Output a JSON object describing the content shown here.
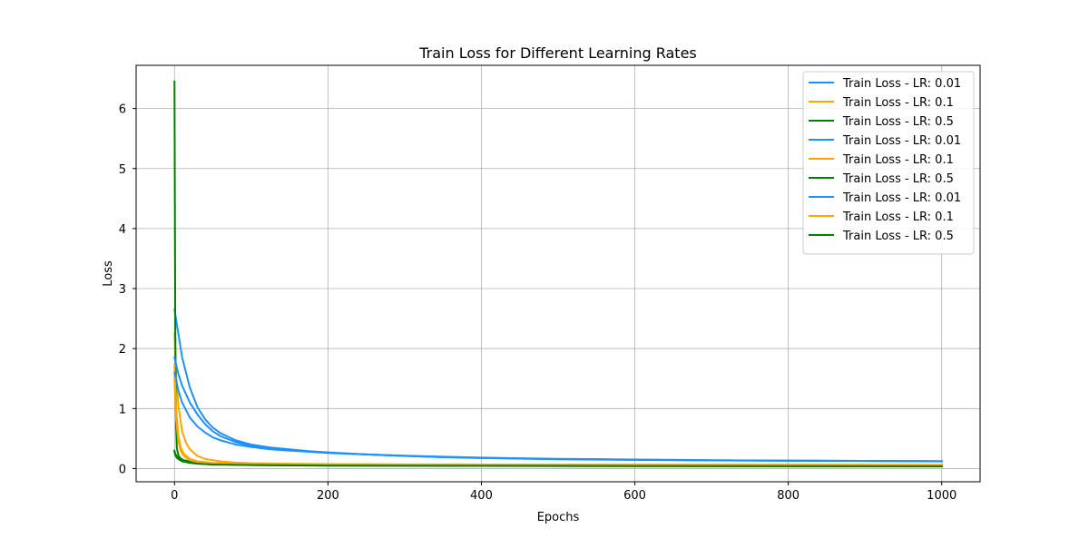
{
  "chart_data": {
    "type": "line",
    "title": "Train Loss for Different Learning Rates",
    "xlabel": "Epochs",
    "ylabel": "Loss",
    "xlim": [
      -50,
      1050
    ],
    "ylim": [
      -0.22,
      6.72
    ],
    "xticks": [
      0,
      200,
      400,
      600,
      800,
      1000
    ],
    "yticks": [
      0,
      1,
      2,
      3,
      4,
      5,
      6
    ],
    "grid": true,
    "legend_position": "top-right",
    "colors": {
      "lr_0_01": "#1e90ff",
      "lr_0_1": "#ffa500",
      "lr_0_5": "#008000"
    },
    "series": [
      {
        "name": "Train Loss - LR: 0.01",
        "color": "#1e90ff",
        "x": [
          0,
          10,
          20,
          30,
          40,
          50,
          60,
          80,
          100,
          125,
          150,
          175,
          200,
          250,
          300,
          350,
          400,
          450,
          500,
          600,
          700,
          800,
          900,
          1000
        ],
        "y": [
          2.65,
          1.85,
          1.35,
          1.02,
          0.82,
          0.68,
          0.59,
          0.47,
          0.4,
          0.35,
          0.32,
          0.29,
          0.27,
          0.235,
          0.21,
          0.19,
          0.175,
          0.165,
          0.155,
          0.145,
          0.135,
          0.13,
          0.125,
          0.12
        ]
      },
      {
        "name": "Train Loss - LR: 0.1",
        "color": "#ffa500",
        "x": [
          0,
          2,
          5,
          10,
          15,
          20,
          30,
          40,
          60,
          80,
          100,
          150,
          200,
          300,
          400,
          600,
          800,
          1000
        ],
        "y": [
          2.25,
          1.6,
          1.05,
          0.62,
          0.43,
          0.32,
          0.21,
          0.16,
          0.12,
          0.1,
          0.09,
          0.08,
          0.075,
          0.07,
          0.068,
          0.065,
          0.063,
          0.062
        ]
      },
      {
        "name": "Train Loss - LR: 0.5",
        "color": "#008000",
        "x": [
          0,
          1,
          2,
          3,
          5,
          8,
          12,
          20,
          30,
          50,
          100,
          200,
          400,
          600,
          800,
          1000
        ],
        "y": [
          6.45,
          2.4,
          0.75,
          0.35,
          0.22,
          0.17,
          0.14,
          0.12,
          0.1,
          0.085,
          0.07,
          0.062,
          0.058,
          0.055,
          0.053,
          0.052
        ]
      },
      {
        "name": "Train Loss - LR: 0.01",
        "color": "#1e90ff",
        "x": [
          0,
          5,
          10,
          20,
          30,
          40,
          50,
          60,
          80,
          100,
          125,
          150,
          175,
          200,
          250,
          300,
          350,
          400,
          450,
          500,
          600,
          700,
          800,
          900,
          1000
        ],
        "y": [
          1.85,
          1.58,
          1.38,
          1.1,
          0.9,
          0.74,
          0.62,
          0.54,
          0.44,
          0.38,
          0.34,
          0.31,
          0.285,
          0.265,
          0.235,
          0.21,
          0.19,
          0.178,
          0.167,
          0.158,
          0.147,
          0.138,
          0.132,
          0.127,
          0.122
        ]
      },
      {
        "name": "Train Loss - LR: 0.1",
        "color": "#ffa500",
        "x": [
          0,
          2,
          5,
          8,
          12,
          20,
          30,
          50,
          80,
          100,
          150,
          200,
          300,
          400,
          600,
          800,
          1000
        ],
        "y": [
          1.72,
          1.0,
          0.55,
          0.36,
          0.25,
          0.16,
          0.12,
          0.095,
          0.085,
          0.08,
          0.075,
          0.072,
          0.068,
          0.066,
          0.064,
          0.062,
          0.061
        ]
      },
      {
        "name": "Train Loss - LR: 0.5",
        "color": "#008000",
        "x": [
          0,
          1,
          3,
          6,
          10,
          20,
          30,
          50,
          100,
          200,
          400,
          600,
          800,
          1000
        ],
        "y": [
          0.3,
          0.25,
          0.2,
          0.16,
          0.13,
          0.1,
          0.085,
          0.07,
          0.06,
          0.05,
          0.045,
          0.042,
          0.04,
          0.038
        ]
      },
      {
        "name": "Train Loss - LR: 0.01",
        "color": "#1e90ff",
        "x": [
          0,
          5,
          10,
          20,
          30,
          40,
          50,
          60,
          80,
          100,
          125,
          150,
          175,
          200,
          250,
          300,
          350,
          400,
          450,
          500,
          600,
          700,
          800,
          900,
          1000
        ],
        "y": [
          1.6,
          1.3,
          1.1,
          0.85,
          0.7,
          0.6,
          0.52,
          0.47,
          0.4,
          0.36,
          0.32,
          0.3,
          0.28,
          0.26,
          0.235,
          0.215,
          0.198,
          0.183,
          0.172,
          0.162,
          0.15,
          0.14,
          0.133,
          0.127,
          0.122
        ]
      },
      {
        "name": "Train Loss - LR: 0.1",
        "color": "#ffa500",
        "x": [
          0,
          2,
          5,
          8,
          12,
          20,
          30,
          50,
          80,
          100,
          150,
          200,
          300,
          400,
          600,
          800,
          1000
        ],
        "y": [
          1.5,
          0.85,
          0.45,
          0.3,
          0.21,
          0.14,
          0.11,
          0.09,
          0.08,
          0.076,
          0.072,
          0.07,
          0.067,
          0.065,
          0.063,
          0.061,
          0.06
        ]
      },
      {
        "name": "Train Loss - LR: 0.5",
        "color": "#008000",
        "x": [
          0,
          1,
          3,
          6,
          10,
          20,
          30,
          50,
          100,
          200,
          400,
          600,
          800,
          1000
        ],
        "y": [
          0.28,
          0.23,
          0.18,
          0.15,
          0.12,
          0.095,
          0.08,
          0.068,
          0.058,
          0.049,
          0.044,
          0.041,
          0.039,
          0.037
        ]
      }
    ]
  }
}
